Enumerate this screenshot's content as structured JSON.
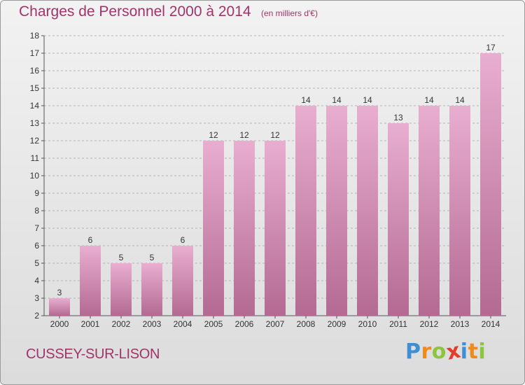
{
  "chart_data": {
    "type": "bar",
    "title": "Charges de Personnel 2000 à 2014",
    "subtitle": "(en milliers d'€)",
    "categories": [
      "2000",
      "2001",
      "2002",
      "2003",
      "2004",
      "2005",
      "2006",
      "2007",
      "2008",
      "2009",
      "2010",
      "2011",
      "2012",
      "2013",
      "2014"
    ],
    "values": [
      3,
      6,
      5,
      5,
      6,
      12,
      12,
      12,
      14,
      14,
      14,
      13,
      14,
      14,
      17
    ],
    "value_labels": [
      "3",
      "6",
      "5",
      "5",
      "6",
      "12",
      "12",
      "12",
      "14",
      "14",
      "14",
      "13",
      "14",
      "14",
      "17"
    ],
    "y_ticks": [
      "2",
      "3",
      "4",
      "5",
      "6",
      "7",
      "8",
      "9",
      "10",
      "11",
      "12",
      "13",
      "14",
      "15",
      "16",
      "17",
      "18"
    ],
    "ylim": [
      2,
      18
    ],
    "grid": true,
    "bar_color": "#c4729f",
    "bar_color_light": "#e8aed0",
    "xlabel": "",
    "ylabel": ""
  },
  "footer": {
    "commune": "CUSSEY-SUR-LISON"
  },
  "logo": {
    "letters": [
      "P",
      "r",
      "o",
      "x",
      "i",
      "t",
      "i"
    ],
    "colors": [
      "#3d8fd6",
      "#f08a1d",
      "#8cc63f",
      "#e53b2c",
      "#3d8fd6",
      "#f08a1d",
      "#8cc63f"
    ]
  },
  "colors": {
    "title": "#a0346a",
    "grid": "#b4b4b4"
  }
}
